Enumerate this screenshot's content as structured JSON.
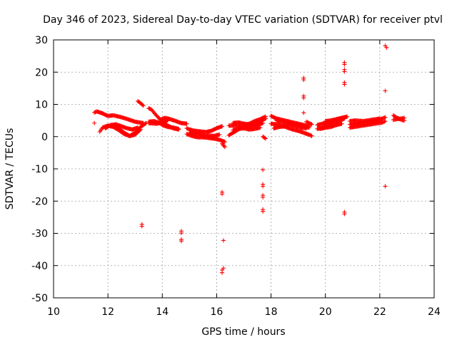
{
  "chart_data": {
    "type": "scatter",
    "title": "Day 346 of 2023, Sidereal Day-to-day VTEC variation (SDTVAR) for receiver ptvl",
    "xlabel": "GPS time / hours",
    "ylabel": "SDTVAR / TECUs",
    "xlim": [
      10,
      24
    ],
    "ylim": [
      -50,
      30
    ],
    "xticks": [
      10,
      12,
      14,
      16,
      18,
      20,
      22,
      24
    ],
    "yticks": [
      -50,
      -40,
      -30,
      -20,
      -10,
      0,
      10,
      20,
      30
    ],
    "xtick_labels": [
      "10",
      "12",
      "14",
      "16",
      "18",
      "20",
      "22",
      "24"
    ],
    "ytick_labels": [
      "-50",
      "-40",
      "-30",
      "-20",
      "-10",
      "0",
      "10",
      "20",
      "30"
    ],
    "grid": true,
    "marker": "+",
    "color": "#ff0000",
    "tracks": [
      {
        "x": [
          11.5,
          11.6,
          11.8,
          12.0,
          12.2,
          12.5,
          12.8,
          13.0,
          13.3
        ],
        "y": [
          7.5,
          7.8,
          7.2,
          6.4,
          6.6,
          6.0,
          5.2,
          4.6,
          4.2
        ]
      },
      {
        "x": [
          11.7,
          11.8,
          12.0,
          12.2,
          12.4,
          12.6,
          12.8,
          13.0,
          13.2,
          13.4
        ],
        "y": [
          1.5,
          2.8,
          3.4,
          3.0,
          2.0,
          0.8,
          0.2,
          1.2,
          3.0,
          4.2
        ]
      },
      {
        "x": [
          12.2,
          12.4,
          12.6,
          12.8,
          13.0,
          13.2
        ],
        "y": [
          3.6,
          2.6,
          1.2,
          0.2,
          0.6,
          2.2
        ]
      },
      {
        "x": [
          11.9,
          12.1,
          12.3,
          12.5,
          12.7,
          12.9,
          13.1
        ],
        "y": [
          2.6,
          3.6,
          3.8,
          3.2,
          2.6,
          2.2,
          2.8
        ]
      },
      {
        "x": [
          13.1,
          13.2,
          13.3
        ],
        "y": [
          11.0,
          10.4,
          9.6
        ]
      },
      {
        "x": [
          13.5,
          13.6,
          13.7,
          13.8,
          13.9,
          14.0,
          14.1,
          14.2,
          14.4,
          14.6
        ],
        "y": [
          8.8,
          8.4,
          7.4,
          6.4,
          5.6,
          4.8,
          4.0,
          3.4,
          2.6,
          2.2
        ]
      },
      {
        "x": [
          13.5,
          13.7,
          13.9,
          14.0,
          14.2,
          14.4,
          14.6
        ],
        "y": [
          4.6,
          4.8,
          4.2,
          3.6,
          3.0,
          2.8,
          2.4
        ]
      },
      {
        "x": [
          13.9,
          14.1,
          14.3,
          14.5,
          14.7,
          14.9
        ],
        "y": [
          5.2,
          5.8,
          5.4,
          4.8,
          4.2,
          4.0
        ]
      },
      {
        "x": [
          13.5,
          13.8,
          14.0,
          14.2
        ],
        "y": [
          4.2,
          4.0,
          4.4,
          5.0
        ]
      },
      {
        "x": [
          14.9,
          15.0,
          15.2,
          15.4,
          15.6,
          15.8,
          16.0,
          16.2
        ],
        "y": [
          2.6,
          2.2,
          1.8,
          1.6,
          1.4,
          1.8,
          2.6,
          3.2
        ]
      },
      {
        "x": [
          14.9,
          15.1,
          15.3,
          15.5,
          15.7,
          15.9,
          16.1,
          16.3
        ],
        "y": [
          0.8,
          0.2,
          -0.2,
          -0.2,
          -0.4,
          -0.6,
          -1.0,
          -1.6
        ]
      },
      {
        "x": [
          15.0,
          15.3,
          15.6,
          15.9,
          16.1
        ],
        "y": [
          1.2,
          0.8,
          0.4,
          0.2,
          0.6
        ]
      },
      {
        "x": [
          16.2,
          16.3
        ],
        "y": [
          -2.2,
          -3.2
        ]
      },
      {
        "x": [
          16.45,
          16.6,
          16.8,
          17.0,
          17.2,
          17.4,
          17.6,
          17.8
        ],
        "y": [
          0.4,
          1.2,
          2.2,
          3.2,
          4.0,
          4.8,
          5.4,
          6.2
        ]
      },
      {
        "x": [
          16.45,
          16.7,
          16.9,
          17.1,
          17.3,
          17.5,
          17.7
        ],
        "y": [
          3.4,
          3.4,
          3.2,
          3.0,
          3.2,
          3.6,
          4.2
        ]
      },
      {
        "x": [
          16.6,
          16.8,
          17.0,
          17.2,
          17.4,
          17.6,
          17.8
        ],
        "y": [
          4.2,
          4.4,
          4.0,
          3.8,
          4.2,
          4.8,
          5.6
        ]
      },
      {
        "x": [
          16.6,
          16.8,
          17.0,
          17.2,
          17.4,
          17.6
        ],
        "y": [
          2.0,
          2.4,
          2.6,
          2.2,
          2.4,
          2.8
        ]
      },
      {
        "x": [
          17.7,
          17.8
        ],
        "y": [
          0.0,
          -0.6
        ]
      },
      {
        "x": [
          18.0,
          18.2,
          18.4,
          18.6,
          18.8,
          19.0,
          19.2,
          19.4
        ],
        "y": [
          6.4,
          5.6,
          5.2,
          4.8,
          4.4,
          4.0,
          3.6,
          3.2
        ]
      },
      {
        "x": [
          18.0,
          18.2,
          18.4,
          18.6,
          18.8,
          19.0,
          19.2,
          19.4,
          19.5
        ],
        "y": [
          4.0,
          3.8,
          3.4,
          2.8,
          2.2,
          1.8,
          1.2,
          0.6,
          0.2
        ]
      },
      {
        "x": [
          18.1,
          18.3,
          18.5,
          18.7,
          18.9,
          19.1,
          19.3
        ],
        "y": [
          2.6,
          3.0,
          3.2,
          3.6,
          3.2,
          2.8,
          2.6
        ]
      },
      {
        "x": [
          18.2,
          18.4,
          18.6,
          18.8,
          19.0,
          19.2,
          19.4
        ],
        "y": [
          5.0,
          4.6,
          4.2,
          4.0,
          3.6,
          3.2,
          2.8
        ]
      },
      {
        "x": [
          19.3,
          19.4,
          19.5
        ],
        "y": [
          4.6,
          4.2,
          3.8
        ]
      },
      {
        "x": [
          19.7,
          19.9,
          20.1,
          20.3,
          20.5,
          20.7
        ],
        "y": [
          2.4,
          2.8,
          3.6,
          4.4,
          4.8,
          5.6
        ]
      },
      {
        "x": [
          19.7,
          19.9,
          20.1,
          20.3,
          20.5,
          20.7
        ],
        "y": [
          3.6,
          4.0,
          4.4,
          5.0,
          5.4,
          6.0
        ]
      },
      {
        "x": [
          19.8,
          20.0,
          20.2,
          20.4,
          20.6
        ],
        "y": [
          2.4,
          2.8,
          3.0,
          3.6,
          4.0
        ]
      },
      {
        "x": [
          20.0,
          20.2,
          20.4,
          20.6,
          20.8
        ],
        "y": [
          4.8,
          5.0,
          5.4,
          5.8,
          6.2
        ]
      },
      {
        "x": [
          20.9,
          21.1,
          21.3,
          21.5,
          21.7,
          21.9,
          22.1,
          22.2
        ],
        "y": [
          3.8,
          4.0,
          4.2,
          4.4,
          4.6,
          5.0,
          5.6,
          6.0
        ]
      },
      {
        "x": [
          20.9,
          21.2,
          21.5,
          21.8,
          22.1,
          22.2
        ],
        "y": [
          2.8,
          3.2,
          3.6,
          4.0,
          4.4,
          4.8
        ]
      },
      {
        "x": [
          20.9,
          21.1,
          21.4,
          21.7,
          22.0
        ],
        "y": [
          4.8,
          5.0,
          4.8,
          5.2,
          5.6
        ]
      },
      {
        "x": [
          22.5,
          22.6,
          22.7,
          22.8,
          22.9
        ],
        "y": [
          6.6,
          6.0,
          5.6,
          5.2,
          5.0
        ]
      },
      {
        "x": [
          22.5,
          22.6,
          22.8,
          22.9
        ],
        "y": [
          5.2,
          5.4,
          5.6,
          5.8
        ]
      }
    ],
    "isolated_points": [
      {
        "x": 11.5,
        "y": 4.2
      },
      {
        "x": 13.25,
        "y": -27.2
      },
      {
        "x": 13.25,
        "y": -27.8
      },
      {
        "x": 14.7,
        "y": -29.3
      },
      {
        "x": 14.7,
        "y": -29.9
      },
      {
        "x": 14.7,
        "y": -31.9
      },
      {
        "x": 14.7,
        "y": -32.4
      },
      {
        "x": 16.2,
        "y": -17.2
      },
      {
        "x": 16.2,
        "y": -17.8
      },
      {
        "x": 16.25,
        "y": -32.2
      },
      {
        "x": 16.25,
        "y": -40.8
      },
      {
        "x": 16.2,
        "y": -41.4
      },
      {
        "x": 16.2,
        "y": -42.2
      },
      {
        "x": 17.7,
        "y": -10.3
      },
      {
        "x": 17.7,
        "y": -14.8
      },
      {
        "x": 17.7,
        "y": -15.4
      },
      {
        "x": 17.7,
        "y": -18.2
      },
      {
        "x": 17.7,
        "y": -18.8
      },
      {
        "x": 17.7,
        "y": -22.6
      },
      {
        "x": 17.7,
        "y": -23.2
      },
      {
        "x": 19.2,
        "y": 18.2
      },
      {
        "x": 19.2,
        "y": 17.6
      },
      {
        "x": 19.2,
        "y": 12.6
      },
      {
        "x": 19.2,
        "y": 12.0
      },
      {
        "x": 19.2,
        "y": 7.4
      },
      {
        "x": 20.7,
        "y": 23.0
      },
      {
        "x": 20.7,
        "y": 22.4
      },
      {
        "x": 20.7,
        "y": 20.8
      },
      {
        "x": 20.7,
        "y": 20.2
      },
      {
        "x": 20.7,
        "y": 16.8
      },
      {
        "x": 20.7,
        "y": 16.2
      },
      {
        "x": 20.7,
        "y": -23.4
      },
      {
        "x": 20.7,
        "y": -24.0
      },
      {
        "x": 22.2,
        "y": 28.2
      },
      {
        "x": 22.25,
        "y": 27.6
      },
      {
        "x": 22.2,
        "y": 14.2
      },
      {
        "x": 22.2,
        "y": -15.4
      }
    ]
  }
}
